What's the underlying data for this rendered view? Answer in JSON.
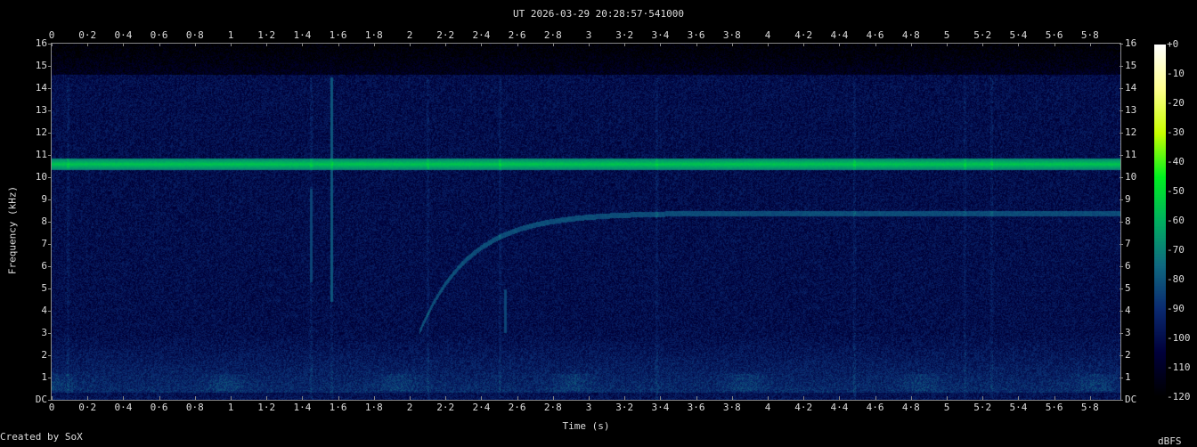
{
  "chart_data": {
    "type": "heatmap",
    "title": "UT 2026-03-29 20:28:57·541000",
    "xlabel": "Time (s)",
    "ylabel": "Frequency (kHz)",
    "xlim": [
      0,
      5.97
    ],
    "ylim": [
      0,
      16
    ],
    "xticks": [
      "0",
      "0·2",
      "0·4",
      "0·6",
      "0·8",
      "1",
      "1·2",
      "1·4",
      "1·6",
      "1·8",
      "2",
      "2·2",
      "2·4",
      "2·6",
      "2·8",
      "3",
      "3·2",
      "3·4",
      "3·6",
      "3·8",
      "4",
      "4·2",
      "4·4",
      "4·6",
      "4·8",
      "5",
      "5·2",
      "5·4",
      "5·6",
      "5·8"
    ],
    "yticks": [
      "DC",
      "1",
      "2",
      "3",
      "4",
      "5",
      "6",
      "7",
      "8",
      "9",
      "10",
      "11",
      "12",
      "13",
      "14",
      "15",
      "16"
    ],
    "colorbar": {
      "label": "dBFS",
      "range": [
        -120,
        0
      ],
      "ticks": [
        "+0",
        "-10",
        "-20",
        "-30",
        "-40",
        "-50",
        "-60",
        "-70",
        "-80",
        "-90",
        "-100",
        "-110",
        "-120"
      ],
      "colors": [
        "#000000",
        "#00003a",
        "#0a2a70",
        "#0f6a80",
        "#00b060",
        "#00f020",
        "#c8ff00",
        "#ffff90",
        "#ffffff"
      ]
    },
    "features": {
      "tone_khz": 10.6,
      "sweep": {
        "start_s": 2.05,
        "start_khz": 3.0,
        "end_khz": 8.4
      },
      "vertical_streaks_s": [
        0.09,
        1.45,
        1.56,
        2.1,
        2.5,
        3.38,
        4.48,
        5.1,
        5.25
      ],
      "noise_floor_dbfs": -100
    }
  },
  "footer": "Created by SoX"
}
